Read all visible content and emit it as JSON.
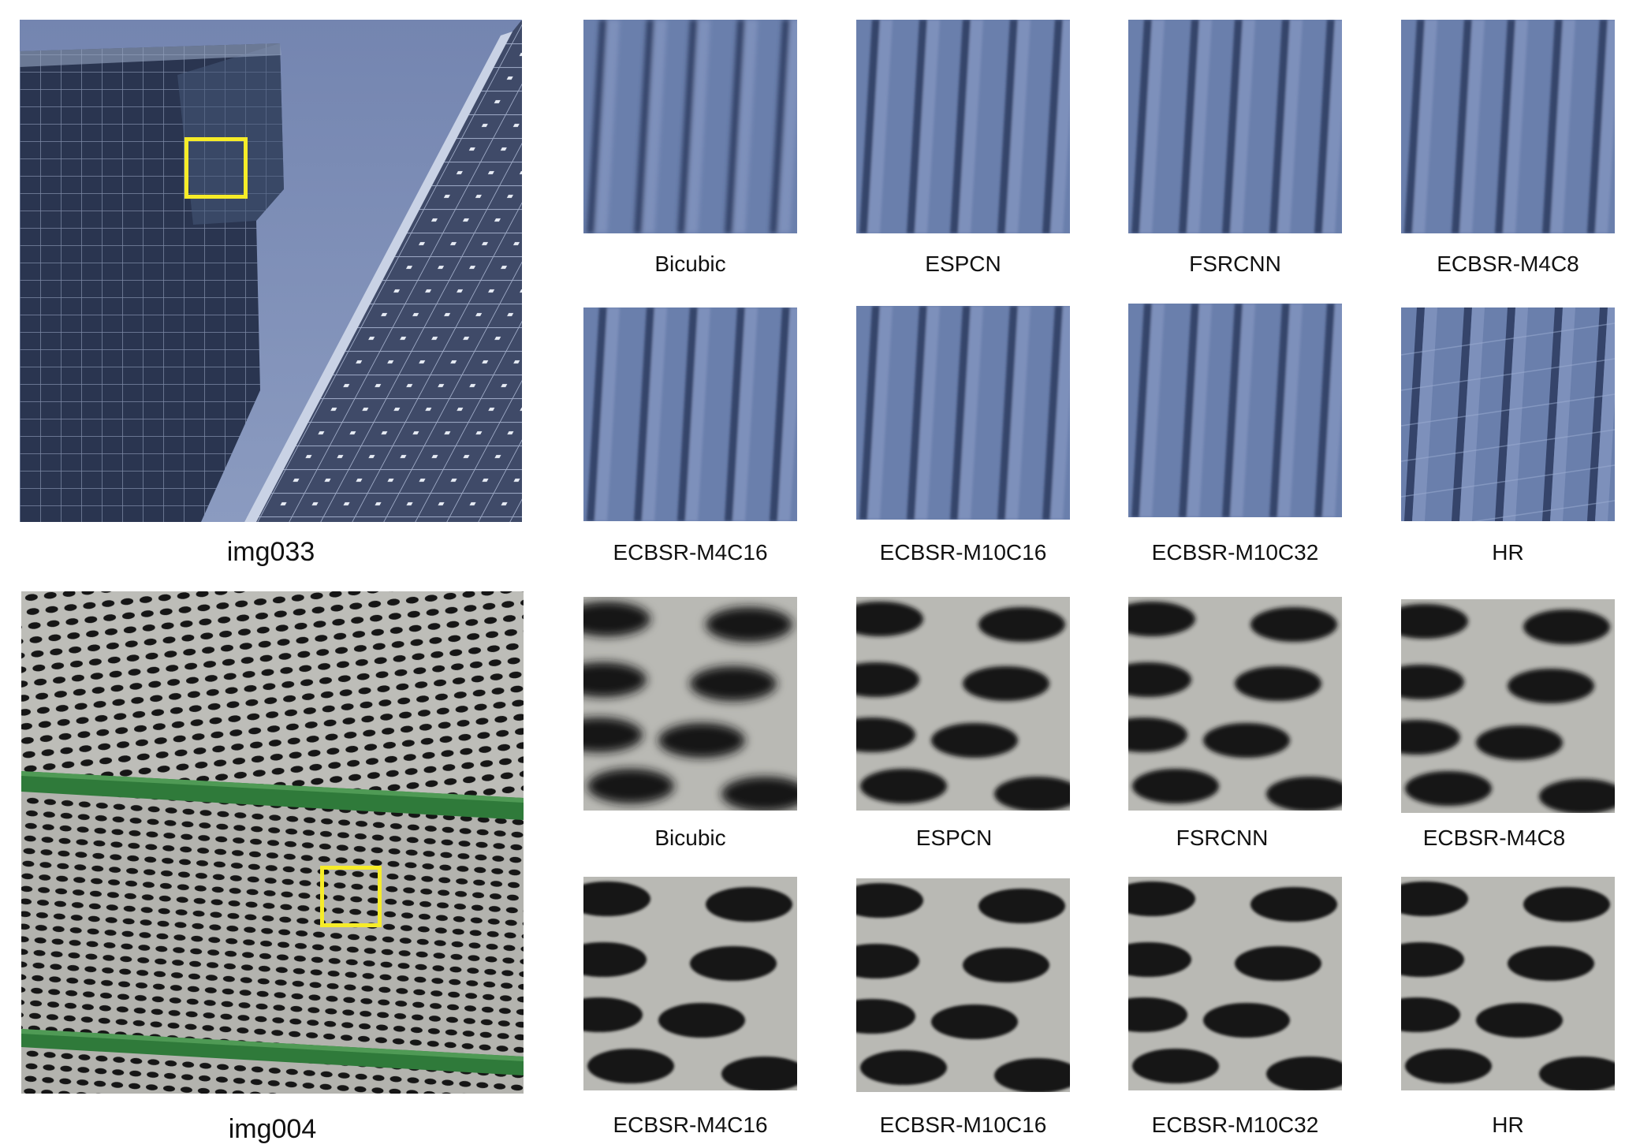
{
  "rows": [
    {
      "source_label": "img033",
      "crop_labels": [
        "Bicubic",
        "ESPCN",
        "FSRCNN",
        "ECBSR-M4C8",
        "ECBSR-M4C16",
        "ECBSR-M10C16",
        "ECBSR-M10C32",
        "HR"
      ]
    },
    {
      "source_label": "img004",
      "crop_labels": [
        "Bicubic",
        "ESPCN",
        "FSRCNN",
        "ECBSR-M4C8",
        "ECBSR-M4C16",
        "ECBSR-M10C16",
        "ECBSR-M10C32",
        "HR"
      ]
    }
  ],
  "colors": {
    "sky": "#7f90b8",
    "glass": "#2f3c55",
    "highlight_box": "#f6ec28",
    "panel_gray": "#b8b8b4",
    "hole": "#1a1a1a",
    "green_beam": "#2f7a3a"
  }
}
